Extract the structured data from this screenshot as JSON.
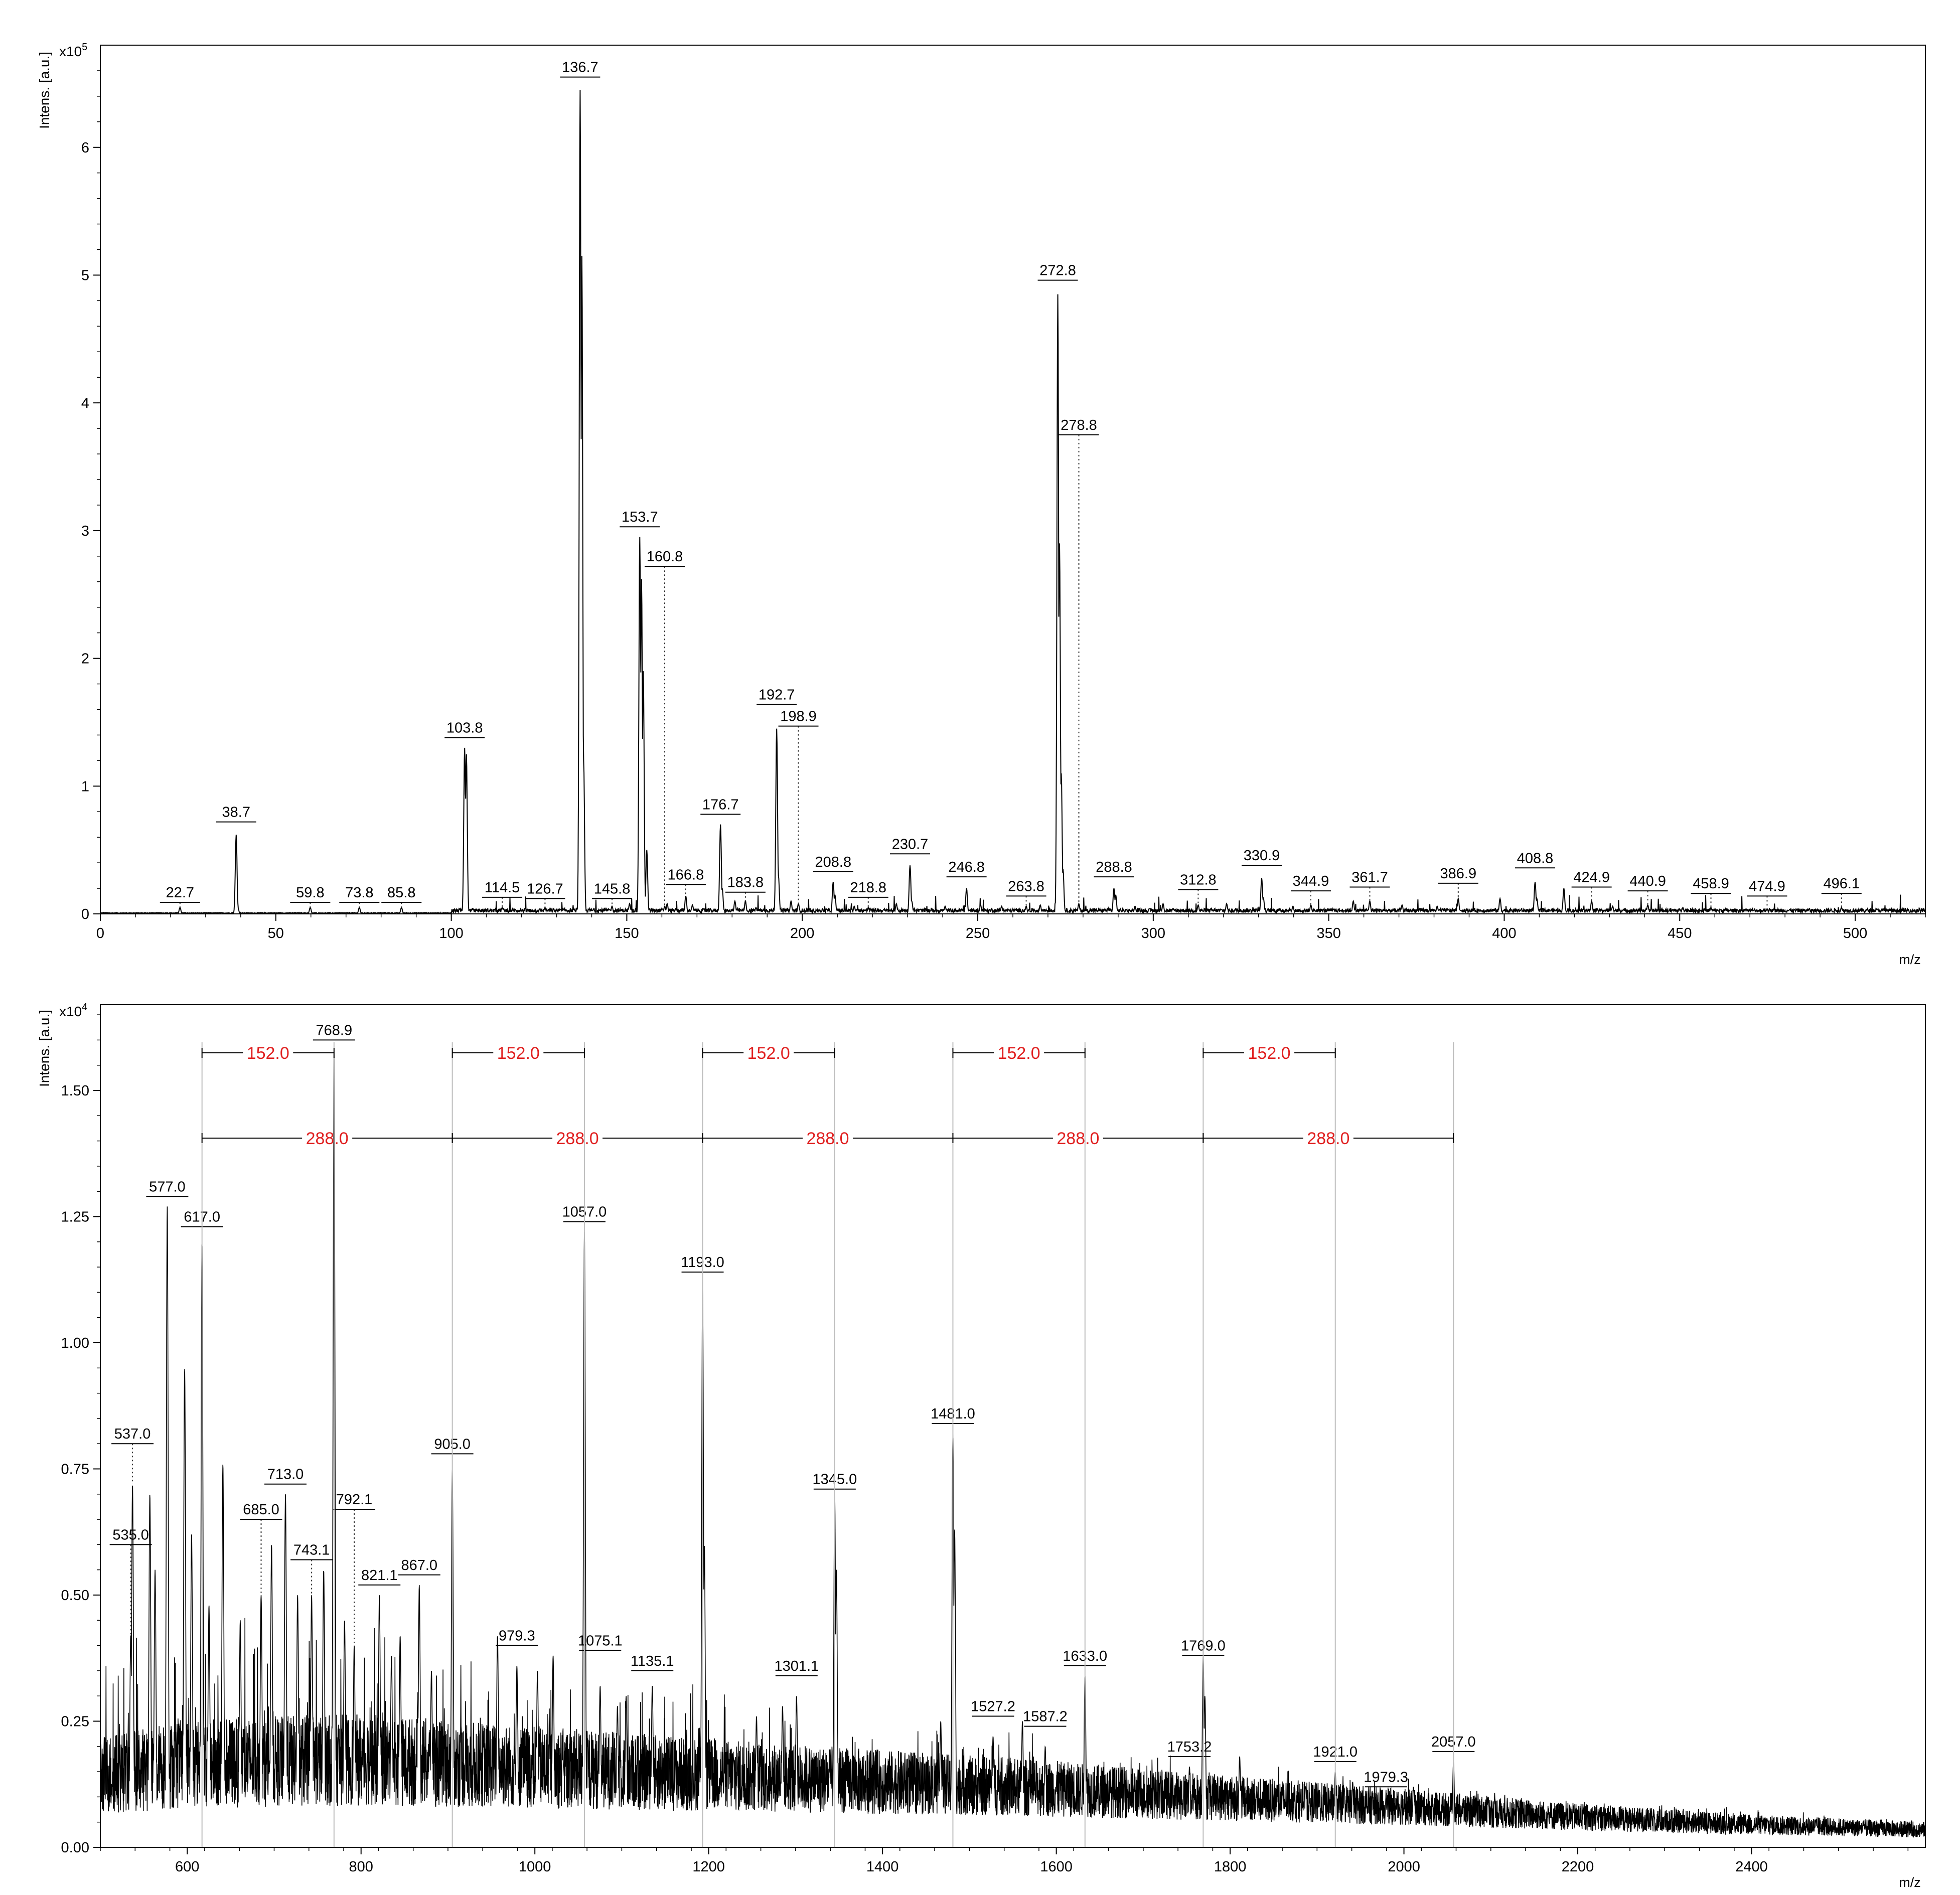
{
  "chart_data": [
    {
      "type": "line",
      "subtype": "mass-spectrum",
      "title": "",
      "xlabel": "m/z",
      "ylabel": "Intens. [a.u.]",
      "y_scale_label": "x10",
      "y_scale_exp": "5",
      "xlim": [
        0,
        520
      ],
      "ylim": [
        0,
        6.8
      ],
      "xticks": [
        0,
        50,
        100,
        150,
        200,
        250,
        300,
        350,
        400,
        450,
        500
      ],
      "yticks": [
        0,
        1,
        2,
        3,
        4,
        5,
        6
      ],
      "grid": false,
      "peaks": [
        {
          "mz": 22.7,
          "label": "22.7",
          "intensity": 0.05,
          "labeled_height": 0.09,
          "line": "dotted"
        },
        {
          "mz": 38.7,
          "label": "38.7",
          "intensity": 0.62,
          "labeled_height": 0.72,
          "line": "solid"
        },
        {
          "mz": 59.8,
          "label": "59.8",
          "intensity": 0.05,
          "labeled_height": 0.09,
          "line": "dotted"
        },
        {
          "mz": 73.8,
          "label": "73.8",
          "intensity": 0.05,
          "labeled_height": 0.09,
          "line": "dotted"
        },
        {
          "mz": 85.8,
          "label": "85.8",
          "intensity": 0.05,
          "labeled_height": 0.09,
          "line": "dotted"
        },
        {
          "mz": 103.8,
          "label": "103.8",
          "intensity": 1.3,
          "labeled_height": 1.38,
          "line": "solid"
        },
        {
          "mz": 114.5,
          "label": "114.5",
          "intensity": 0.05,
          "labeled_height": 0.13,
          "line": "dotted"
        },
        {
          "mz": 126.7,
          "label": "126.7",
          "intensity": 0.05,
          "labeled_height": 0.12,
          "line": "dotted"
        },
        {
          "mz": 136.7,
          "label": "136.7",
          "intensity": 6.45,
          "labeled_height": 6.55,
          "line": "solid"
        },
        {
          "mz": 145.8,
          "label": "145.8",
          "intensity": 0.06,
          "labeled_height": 0.12,
          "line": "dotted"
        },
        {
          "mz": 153.7,
          "label": "153.7",
          "intensity": 2.95,
          "labeled_height": 3.03,
          "line": "solid"
        },
        {
          "mz": 160.8,
          "label": "160.8",
          "intensity": 0.06,
          "labeled_height": 2.72,
          "line": "dotted"
        },
        {
          "mz": 166.8,
          "label": "166.8",
          "intensity": 0.14,
          "labeled_height": 0.23,
          "line": "dotted"
        },
        {
          "mz": 176.7,
          "label": "176.7",
          "intensity": 0.7,
          "labeled_height": 0.78,
          "line": "solid"
        },
        {
          "mz": 183.8,
          "label": "183.8",
          "intensity": 0.1,
          "labeled_height": 0.17,
          "line": "dotted"
        },
        {
          "mz": 192.7,
          "label": "192.7",
          "intensity": 1.45,
          "labeled_height": 1.64,
          "line": "solid"
        },
        {
          "mz": 198.9,
          "label": "198.9",
          "intensity": 0.08,
          "labeled_height": 1.47,
          "line": "dotted"
        },
        {
          "mz": 208.8,
          "label": "208.8",
          "intensity": 0.25,
          "labeled_height": 0.33,
          "line": "solid"
        },
        {
          "mz": 218.8,
          "label": "218.8",
          "intensity": 0.05,
          "labeled_height": 0.13,
          "line": "dotted"
        },
        {
          "mz": 230.7,
          "label": "230.7",
          "intensity": 0.38,
          "labeled_height": 0.47,
          "line": "solid"
        },
        {
          "mz": 246.8,
          "label": "246.8",
          "intensity": 0.2,
          "labeled_height": 0.29,
          "line": "solid"
        },
        {
          "mz": 263.8,
          "label": "263.8",
          "intensity": 0.06,
          "labeled_height": 0.14,
          "line": "dotted"
        },
        {
          "mz": 272.8,
          "label": "272.8",
          "intensity": 4.85,
          "labeled_height": 4.96,
          "line": "solid"
        },
        {
          "mz": 278.8,
          "label": "278.8",
          "intensity": 0.08,
          "labeled_height": 3.75,
          "line": "dotted"
        },
        {
          "mz": 288.8,
          "label": "288.8",
          "intensity": 0.2,
          "labeled_height": 0.29,
          "line": "solid"
        },
        {
          "mz": 312.8,
          "label": "312.8",
          "intensity": 0.07,
          "labeled_height": 0.19,
          "line": "dotted"
        },
        {
          "mz": 330.9,
          "label": "330.9",
          "intensity": 0.28,
          "labeled_height": 0.38,
          "line": "solid"
        },
        {
          "mz": 344.9,
          "label": "344.9",
          "intensity": 0.07,
          "labeled_height": 0.18,
          "line": "dotted"
        },
        {
          "mz": 361.7,
          "label": "361.7",
          "intensity": 0.1,
          "labeled_height": 0.21,
          "line": "dotted"
        },
        {
          "mz": 386.9,
          "label": "386.9",
          "intensity": 0.12,
          "labeled_height": 0.24,
          "line": "dotted"
        },
        {
          "mz": 408.8,
          "label": "408.8",
          "intensity": 0.25,
          "labeled_height": 0.36,
          "line": "solid"
        },
        {
          "mz": 424.9,
          "label": "424.9",
          "intensity": 0.1,
          "labeled_height": 0.21,
          "line": "dotted"
        },
        {
          "mz": 440.9,
          "label": "440.9",
          "intensity": 0.07,
          "labeled_height": 0.18,
          "line": "dotted"
        },
        {
          "mz": 458.9,
          "label": "458.9",
          "intensity": 0.05,
          "labeled_height": 0.16,
          "line": "dotted"
        },
        {
          "mz": 474.9,
          "label": "474.9",
          "intensity": 0.04,
          "labeled_height": 0.14,
          "line": "dotted"
        },
        {
          "mz": 496.1,
          "label": "496.1",
          "intensity": 0.05,
          "labeled_height": 0.16,
          "line": "dotted"
        }
      ],
      "minor_peaks": [
        [
          137.2,
          5.15
        ],
        [
          137.7,
          1.2
        ],
        [
          104.3,
          1.25
        ],
        [
          154.2,
          2.62
        ],
        [
          154.7,
          1.9
        ],
        [
          155.7,
          0.5
        ],
        [
          193.2,
          0.3
        ],
        [
          273.3,
          2.9
        ],
        [
          273.8,
          1.1
        ],
        [
          274.3,
          0.35
        ],
        [
          177.2,
          0.2
        ],
        [
          209.3,
          0.15
        ],
        [
          231.2,
          0.1
        ],
        [
          289.3,
          0.15
        ],
        [
          331.4,
          0.12
        ],
        [
          409.3,
          0.12
        ],
        [
          417.0,
          0.2
        ],
        [
          398.8,
          0.12
        ],
        [
          357.0,
          0.1
        ],
        [
          302.8,
          0.08
        ],
        [
          320.9,
          0.08
        ],
        [
          370.9,
          0.07
        ],
        [
          39.2,
          0.05
        ],
        [
          161.5,
          0.08
        ],
        [
          168.7,
          0.07
        ],
        [
          186.8,
          0.05
        ],
        [
          214.8,
          0.06
        ],
        [
          240.7,
          0.06
        ],
        [
          256.8,
          0.06
        ],
        [
          267.8,
          0.07
        ],
        [
          294.8,
          0.06
        ],
        [
          339.8,
          0.06
        ],
        [
          380.9,
          0.06
        ],
        [
          430.9,
          0.06
        ],
        [
          450.9,
          0.05
        ],
        [
          468.9,
          0.04
        ],
        [
          486.9,
          0.04
        ],
        [
          150.8,
          0.08
        ],
        [
          180.8,
          0.1
        ],
        [
          196.8,
          0.1
        ],
        [
          226.8,
          0.08
        ],
        [
          250.8,
          0.07
        ]
      ]
    },
    {
      "type": "line",
      "subtype": "mass-spectrum",
      "title": "",
      "xlabel": "m/z",
      "ylabel": "Intens. [a.u.]",
      "y_scale_label": "x10",
      "y_scale_exp": "4",
      "xlim": [
        500,
        2600
      ],
      "ylim": [
        0,
        1.67
      ],
      "xticks": [
        600,
        800,
        1000,
        1200,
        1400,
        1600,
        1800,
        2000,
        2200,
        2400
      ],
      "yticks": [
        "0.00",
        "0.25",
        "0.50",
        "0.75",
        "1.00",
        "1.25",
        "1.50"
      ],
      "grid": false,
      "baseline": [
        [
          500,
          0.12
        ],
        [
          600,
          0.14
        ],
        [
          800,
          0.15
        ],
        [
          1000,
          0.14
        ],
        [
          1200,
          0.13
        ],
        [
          1400,
          0.12
        ],
        [
          1600,
          0.11
        ],
        [
          1800,
          0.095
        ],
        [
          2000,
          0.08
        ],
        [
          2200,
          0.06
        ],
        [
          2400,
          0.045
        ],
        [
          2600,
          0.035
        ]
      ],
      "peaks": [
        {
          "mz": 535.0,
          "label": "535.0",
          "intensity": 0.42,
          "labeled_height": 0.6,
          "line": "dotted"
        },
        {
          "mz": 537.0,
          "label": "537.0",
          "intensity": 0.72,
          "labeled_height": 0.8,
          "line": "dotted"
        },
        {
          "mz": 577.0,
          "label": "577.0",
          "intensity": 1.27,
          "labeled_height": 1.29,
          "line": "solid"
        },
        {
          "mz": 617.0,
          "label": "617.0",
          "intensity": 1.2,
          "labeled_height": 1.23,
          "line": "solid"
        },
        {
          "mz": 685.0,
          "label": "685.0",
          "intensity": 0.5,
          "labeled_height": 0.65,
          "line": "dotted"
        },
        {
          "mz": 713.0,
          "label": "713.0",
          "intensity": 0.7,
          "labeled_height": 0.72,
          "line": "solid"
        },
        {
          "mz": 743.1,
          "label": "743.1",
          "intensity": 0.5,
          "labeled_height": 0.57,
          "line": "dotted"
        },
        {
          "mz": 768.9,
          "label": "768.9",
          "intensity": 1.58,
          "labeled_height": 1.6,
          "line": "solid"
        },
        {
          "mz": 792.1,
          "label": "792.1",
          "intensity": 0.4,
          "labeled_height": 0.67,
          "line": "dotted"
        },
        {
          "mz": 821.1,
          "label": "821.1",
          "intensity": 0.5,
          "labeled_height": 0.52,
          "line": "solid"
        },
        {
          "mz": 867.0,
          "label": "867.0",
          "intensity": 0.52,
          "labeled_height": 0.54,
          "line": "solid"
        },
        {
          "mz": 905.0,
          "label": "905.0",
          "intensity": 0.75,
          "labeled_height": 0.78,
          "line": "solid"
        },
        {
          "mz": 979.3,
          "label": "979.3",
          "intensity": 0.36,
          "labeled_height": 0.4,
          "line": "solid"
        },
        {
          "mz": 1057.0,
          "label": "1057.0",
          "intensity": 1.22,
          "labeled_height": 1.24,
          "line": "solid"
        },
        {
          "mz": 1075.1,
          "label": "1075.1",
          "intensity": 0.32,
          "labeled_height": 0.39,
          "line": "solid"
        },
        {
          "mz": 1135.1,
          "label": "1135.1",
          "intensity": 0.32,
          "labeled_height": 0.35,
          "line": "solid"
        },
        {
          "mz": 1193.0,
          "label": "1193.0",
          "intensity": 1.12,
          "labeled_height": 1.14,
          "line": "solid"
        },
        {
          "mz": 1301.1,
          "label": "1301.1",
          "intensity": 0.3,
          "labeled_height": 0.34,
          "line": "solid"
        },
        {
          "mz": 1345.0,
          "label": "1345.0",
          "intensity": 0.7,
          "labeled_height": 0.71,
          "line": "solid"
        },
        {
          "mz": 1481.0,
          "label": "1481.0",
          "intensity": 0.82,
          "labeled_height": 0.84,
          "line": "solid"
        },
        {
          "mz": 1527.2,
          "label": "1527.2",
          "intensity": 0.22,
          "labeled_height": 0.26,
          "line": "solid"
        },
        {
          "mz": 1587.2,
          "label": "1587.2",
          "intensity": 0.2,
          "labeled_height": 0.24,
          "line": "solid"
        },
        {
          "mz": 1633.0,
          "label": "1633.0",
          "intensity": 0.34,
          "labeled_height": 0.36,
          "line": "solid"
        },
        {
          "mz": 1753.2,
          "label": "1753.2",
          "intensity": 0.16,
          "labeled_height": 0.18,
          "line": "solid"
        },
        {
          "mz": 1769.0,
          "label": "1769.0",
          "intensity": 0.38,
          "labeled_height": 0.38,
          "line": "solid"
        },
        {
          "mz": 1921.0,
          "label": "1921.0",
          "intensity": 0.15,
          "labeled_height": 0.17,
          "line": "solid"
        },
        {
          "mz": 1979.3,
          "label": "1979.3",
          "intensity": 0.1,
          "labeled_height": 0.12,
          "line": "solid"
        },
        {
          "mz": 2057.0,
          "label": "2057.0",
          "intensity": 0.17,
          "labeled_height": 0.19,
          "line": "solid"
        }
      ],
      "minor_peaks": [
        [
          557.0,
          0.7
        ],
        [
          563.0,
          0.55
        ],
        [
          597.0,
          0.95
        ],
        [
          605.0,
          0.62
        ],
        [
          625.0,
          0.48
        ],
        [
          641.0,
          0.76
        ],
        [
          661.0,
          0.45
        ],
        [
          697.0,
          0.6
        ],
        [
          727.0,
          0.5
        ],
        [
          757.0,
          0.55
        ],
        [
          781.0,
          0.45
        ],
        [
          835.0,
          0.38
        ],
        [
          845.0,
          0.42
        ],
        [
          881.0,
          0.35
        ],
        [
          957.0,
          0.42
        ],
        [
          1003.0,
          0.35
        ],
        [
          1021.0,
          0.38
        ],
        [
          1095.0,
          0.28
        ],
        [
          1105.0,
          0.3
        ],
        [
          1195.0,
          0.6
        ],
        [
          1255.0,
          0.26
        ],
        [
          1285.0,
          0.28
        ],
        [
          1347.0,
          0.55
        ],
        [
          1467.0,
          0.25
        ],
        [
          1483.0,
          0.63
        ],
        [
          1561.0,
          0.25
        ],
        [
          1771.0,
          0.3
        ],
        [
          1811.0,
          0.18
        ],
        [
          1887.0,
          0.12
        ],
        [
          1941.0,
          0.13
        ],
        [
          2011.0,
          0.12
        ],
        [
          2097.0,
          0.1
        ]
      ],
      "annotations": {
        "upper_row": {
          "label": "152.0",
          "spans": [
            [
              617.0,
              768.9
            ],
            [
              905.0,
              1057.0
            ],
            [
              1193.0,
              1345.0
            ],
            [
              1481.0,
              1633.0
            ],
            [
              1769.0,
              1921.0
            ]
          ]
        },
        "lower_row": {
          "label": "288.0",
          "spans": [
            [
              617.0,
              905.0
            ],
            [
              905.0,
              1193.0
            ],
            [
              1193.0,
              1481.0
            ],
            [
              1481.0,
              1769.0
            ],
            [
              1769.0,
              2057.0
            ]
          ]
        }
      }
    }
  ],
  "colors": {
    "trace": "#000000",
    "label_line": "#777777",
    "annotation": "#e02020",
    "axis": "#000000"
  }
}
